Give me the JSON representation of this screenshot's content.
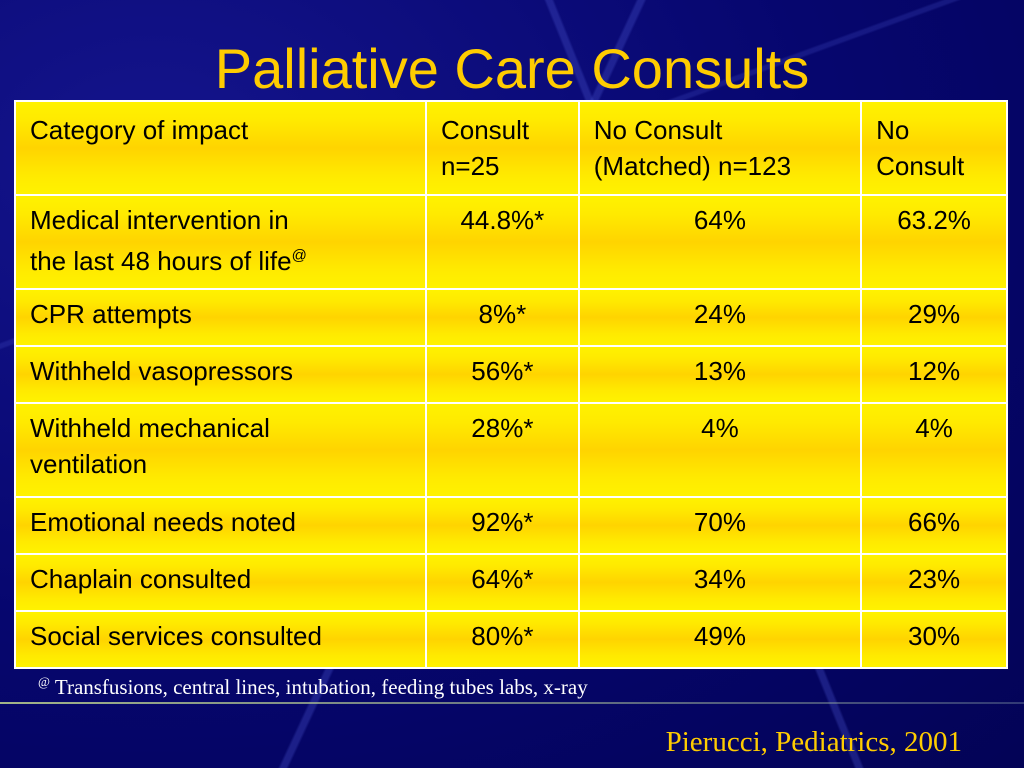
{
  "title": "Palliative Care Consults",
  "table": {
    "headers": [
      [
        "Category of impact"
      ],
      [
        "Consult",
        "n=25"
      ],
      [
        "No Consult",
        "(Matched) n=123"
      ],
      [
        "No",
        "Consult"
      ]
    ],
    "rows": [
      {
        "category": [
          "Medical intervention in",
          "the last 48 hours of life"
        ],
        "category_sup": "@",
        "values": [
          "44.8%*",
          "64%",
          "63.2%"
        ]
      },
      {
        "category": [
          "CPR attempts"
        ],
        "values": [
          "8%*",
          "24%",
          "29%"
        ]
      },
      {
        "category": [
          "Withheld vasopressors"
        ],
        "values": [
          "56%*",
          "13%",
          "12%"
        ]
      },
      {
        "category": [
          "Withheld mechanical",
          "ventilation"
        ],
        "values": [
          "28%*",
          "4%",
          "4%"
        ]
      },
      {
        "category": [
          "Emotional needs noted"
        ],
        "values": [
          "92%*",
          "70%",
          "66%"
        ]
      },
      {
        "category": [
          "Chaplain consulted"
        ],
        "values": [
          "64%*",
          "34%",
          "23%"
        ]
      },
      {
        "category": [
          "Social services consulted"
        ],
        "values": [
          "80%*",
          "49%",
          "30%"
        ]
      }
    ]
  },
  "footnote": {
    "marker": "@",
    "text": " Transfusions, central lines, intubation, feeding tubes labs, x-ray"
  },
  "citation": "Pierucci, Pediatrics, 2001"
}
